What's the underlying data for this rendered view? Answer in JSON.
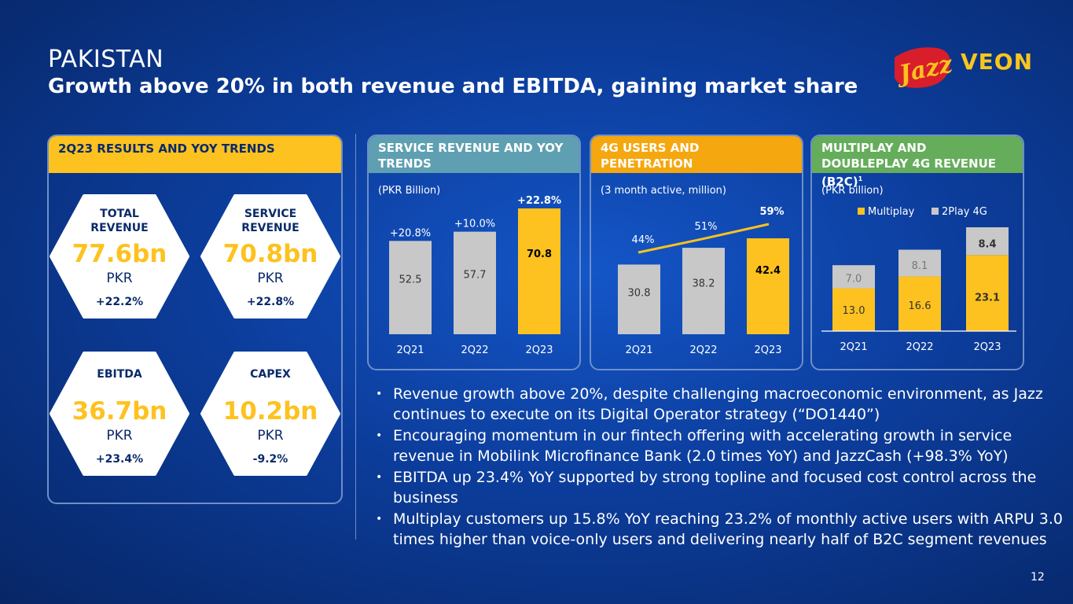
{
  "header": {
    "country": "PAKISTAN",
    "title": "Growth above 20% in both revenue and EBITDA, gaining market share"
  },
  "logos": {
    "jazz": "Jazz",
    "veon": "VEON"
  },
  "colors": {
    "yellow": "#fdc21f",
    "grey": "#c8c8c8",
    "teal": "#5f9fb2",
    "orange": "#f5a70f",
    "green": "#65ad5b",
    "navy": "#0a2a6a"
  },
  "results": {
    "header": "2Q23 RESULTS AND YOY TRENDS",
    "kpis": [
      {
        "label": "TOTAL\nREVENUE",
        "value": "77.6bn",
        "unit": "PKR",
        "change": "+22.2%"
      },
      {
        "label": "SERVICE\nREVENUE",
        "value": "70.8bn",
        "unit": "PKR",
        "change": "+22.8%"
      },
      {
        "label": "EBITDA",
        "value": "36.7bn",
        "unit": "PKR",
        "change": "+23.4%"
      },
      {
        "label": "CAPEX",
        "value": "10.2bn",
        "unit": "PKR",
        "change": "-9.2%"
      }
    ]
  },
  "chart_data": [
    {
      "type": "bar",
      "header": "SERVICE REVENUE AND YOY TRENDS",
      "subtitle": "(PKR Billion)",
      "categories": [
        "2Q21",
        "2Q22",
        "2Q23"
      ],
      "values": [
        52.5,
        57.7,
        70.8
      ],
      "value_labels": [
        "52.5",
        "57.7",
        "70.8"
      ],
      "yoy_labels": [
        "+20.8%",
        "+10.0%",
        "+22.8%"
      ],
      "ylim": [
        0,
        70.8
      ],
      "highlight_last": true
    },
    {
      "type": "bar",
      "header": "4G USERS AND PENETRATION",
      "subtitle": "(3 month active, million)",
      "categories": [
        "2Q21",
        "2Q22",
        "2Q23"
      ],
      "values": [
        30.8,
        38.2,
        42.4
      ],
      "value_labels": [
        "30.8",
        "38.2",
        "42.4"
      ],
      "line_values": [
        44,
        51,
        59
      ],
      "line_labels": [
        "44%",
        "51%",
        "59%"
      ],
      "ylim": [
        0,
        50
      ],
      "highlight_last": true
    },
    {
      "type": "bar",
      "header": "MULTIPLAY AND DOUBLEPLAY 4G REVENUE (B2C)",
      "header_sup": "1",
      "subtitle": "(PKR billion)",
      "categories": [
        "2Q21",
        "2Q22",
        "2Q23"
      ],
      "series": [
        {
          "name": "Multiplay",
          "values": [
            13.0,
            16.6,
            23.1
          ],
          "labels": [
            "13.0",
            "16.6",
            "23.1"
          ]
        },
        {
          "name": "2Play 4G",
          "values": [
            7.0,
            8.1,
            8.4
          ],
          "labels": [
            "7.0",
            "8.1",
            "8.4"
          ]
        }
      ],
      "stacked": true,
      "ylim": [
        0,
        31.5
      ]
    }
  ],
  "bullets": [
    "Revenue growth above 20%, despite challenging macroeconomic environment, as Jazz continues to execute on its Digital Operator strategy (“DO1440”)",
    "Encouraging momentum in our fintech offering with accelerating growth in service revenue in Mobilink Microfinance Bank (2.0 times YoY) and JazzCash (+98.3% YoY)",
    "EBITDA up 23.4% YoY supported by strong topline and focused cost control across the business",
    "Multiplay customers up 15.8% YoY reaching 23.2% of monthly active users with ARPU 3.0 times higher than voice-only users and delivering nearly half of B2C segment revenues"
  ],
  "bullet_char": "•",
  "page_number": "12"
}
